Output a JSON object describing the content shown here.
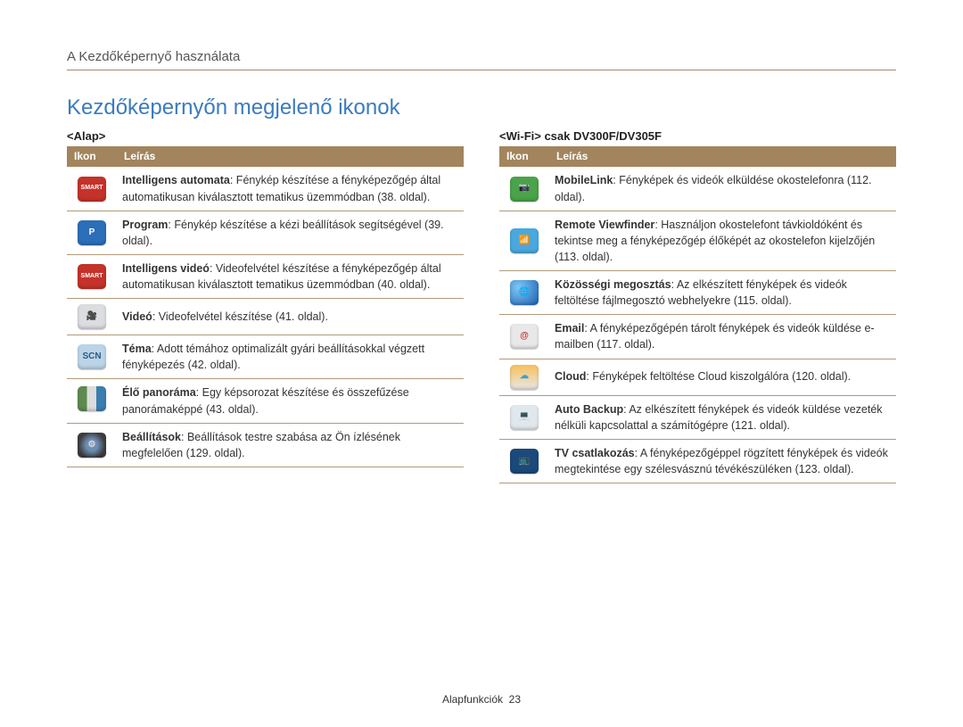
{
  "breadcrumb": "A Kezdőképernyő használata",
  "heading": "Kezdőképernyőn megjelenő ikonok",
  "left": {
    "subheading": "<Alap>",
    "th_icon": "Ikon",
    "th_desc": "Leírás",
    "rows": [
      {
        "icon": {
          "bg": "#c4322a",
          "label": "SMART",
          "txt": "#fff"
        },
        "bold": "Intelligens automata",
        "rest": ": Fénykép készítése a fényképezőgép által automatikusan kiválasztott tematikus üzemmódban (38. oldal)."
      },
      {
        "icon": {
          "bg": "#2b6fb8",
          "label": "P",
          "txt": "#fff"
        },
        "bold": "Program",
        "rest": ": Fénykép készítése a kézi beállítások segítségével (39. oldal)."
      },
      {
        "icon": {
          "bg": "#c4322a",
          "label": "SMART",
          "txt": "#fff"
        },
        "bold": "Intelligens videó",
        "rest": ": Videofelvétel készítése a fényképezőgép által automatikusan kiválasztott tematikus üzemmódban (40. oldal)."
      },
      {
        "icon": {
          "bg": "#dcdde0",
          "label": "🎥",
          "txt": "#444"
        },
        "bold": "Videó",
        "rest": ": Videofelvétel készítése (41. oldal)."
      },
      {
        "icon": {
          "bg": "#bcd4e6",
          "label": "SCN",
          "txt": "#2b5b88"
        },
        "bold": "Téma",
        "rest": ": Adott témához optimalizált gyári beállításokkal végzett fényképezés (42. oldal)."
      },
      {
        "icon": {
          "bg": "linear-gradient(90deg,#5d8a4e 33%,#dcdcdc 33% 66%,#3a7eb0 66%)",
          "label": "",
          "txt": "#fff"
        },
        "bold": "Élő panoráma",
        "rest": ": Egy képsorozat készítése és összefűzése panorámaképpé (43. oldal)."
      },
      {
        "icon": {
          "bg": "radial-gradient(circle,#6d8db3 30%,#3c3c3c 70%)",
          "label": "⚙",
          "txt": "#ddd"
        },
        "bold": "Beállítások",
        "rest": ": Beállítások testre szabása az Ön ízlésének megfelelően (129. oldal)."
      }
    ]
  },
  "right": {
    "subheading": "<Wi-Fi> csak DV300F/DV305F",
    "th_icon": "Ikon",
    "th_desc": "Leírás",
    "rows": [
      {
        "icon": {
          "bg": "#4aa34a",
          "label": "📷",
          "txt": "#fff"
        },
        "bold": "MobileLink",
        "rest": ": Fényképek és videók elküldése okostelefonra (112. oldal)."
      },
      {
        "icon": {
          "bg": "#4aa8e0",
          "label": "📶",
          "txt": "#fff"
        },
        "bold": "Remote Viewfinder",
        "rest": ": Használjon okostelefont távkioldóként és tekintse meg a fényképezőgép élőképét az okostelefon kijelzőjén (113. oldal)."
      },
      {
        "icon": {
          "bg": "radial-gradient(circle at 30% 30%,#7fc7f5,#1a5fb4)",
          "label": "🌐",
          "txt": "#fff"
        },
        "bold": "Közösségi megosztás",
        "rest": ": Az elkészített fényképek és videók feltöltése fájlmegosztó webhelyekre (115. oldal)."
      },
      {
        "icon": {
          "bg": "#e8e8e8",
          "label": "@",
          "txt": "#c4322a"
        },
        "bold": "Email",
        "rest": ": A fényképezőgépén tárolt fényképek és videók küldése e-mailben (117. oldal)."
      },
      {
        "icon": {
          "bg": "linear-gradient(#f5c05a,#e8e8e8)",
          "label": "☁",
          "txt": "#3aa0d8"
        },
        "bold": "Cloud",
        "rest": ": Fényképek feltöltése Cloud kiszolgálóra (120. oldal)."
      },
      {
        "icon": {
          "bg": "#e0e8ee",
          "label": "💻",
          "txt": "#555"
        },
        "bold": "Auto Backup",
        "rest": ": Az elkészített fényképek és videók küldése vezeték nélküli kapcsolattal a számítógépre (121. oldal)."
      },
      {
        "icon": {
          "bg": "#1b4a7a",
          "label": "📺",
          "txt": "#c8e2f5"
        },
        "bold": "TV csatlakozás",
        "rest": ": A fényképezőgéppel rögzített fényképek és videók megtekintése egy szélesvásznú tévékészüléken (123. oldal)."
      }
    ]
  },
  "footer_label": "Alapfunkciók",
  "footer_page": "23"
}
